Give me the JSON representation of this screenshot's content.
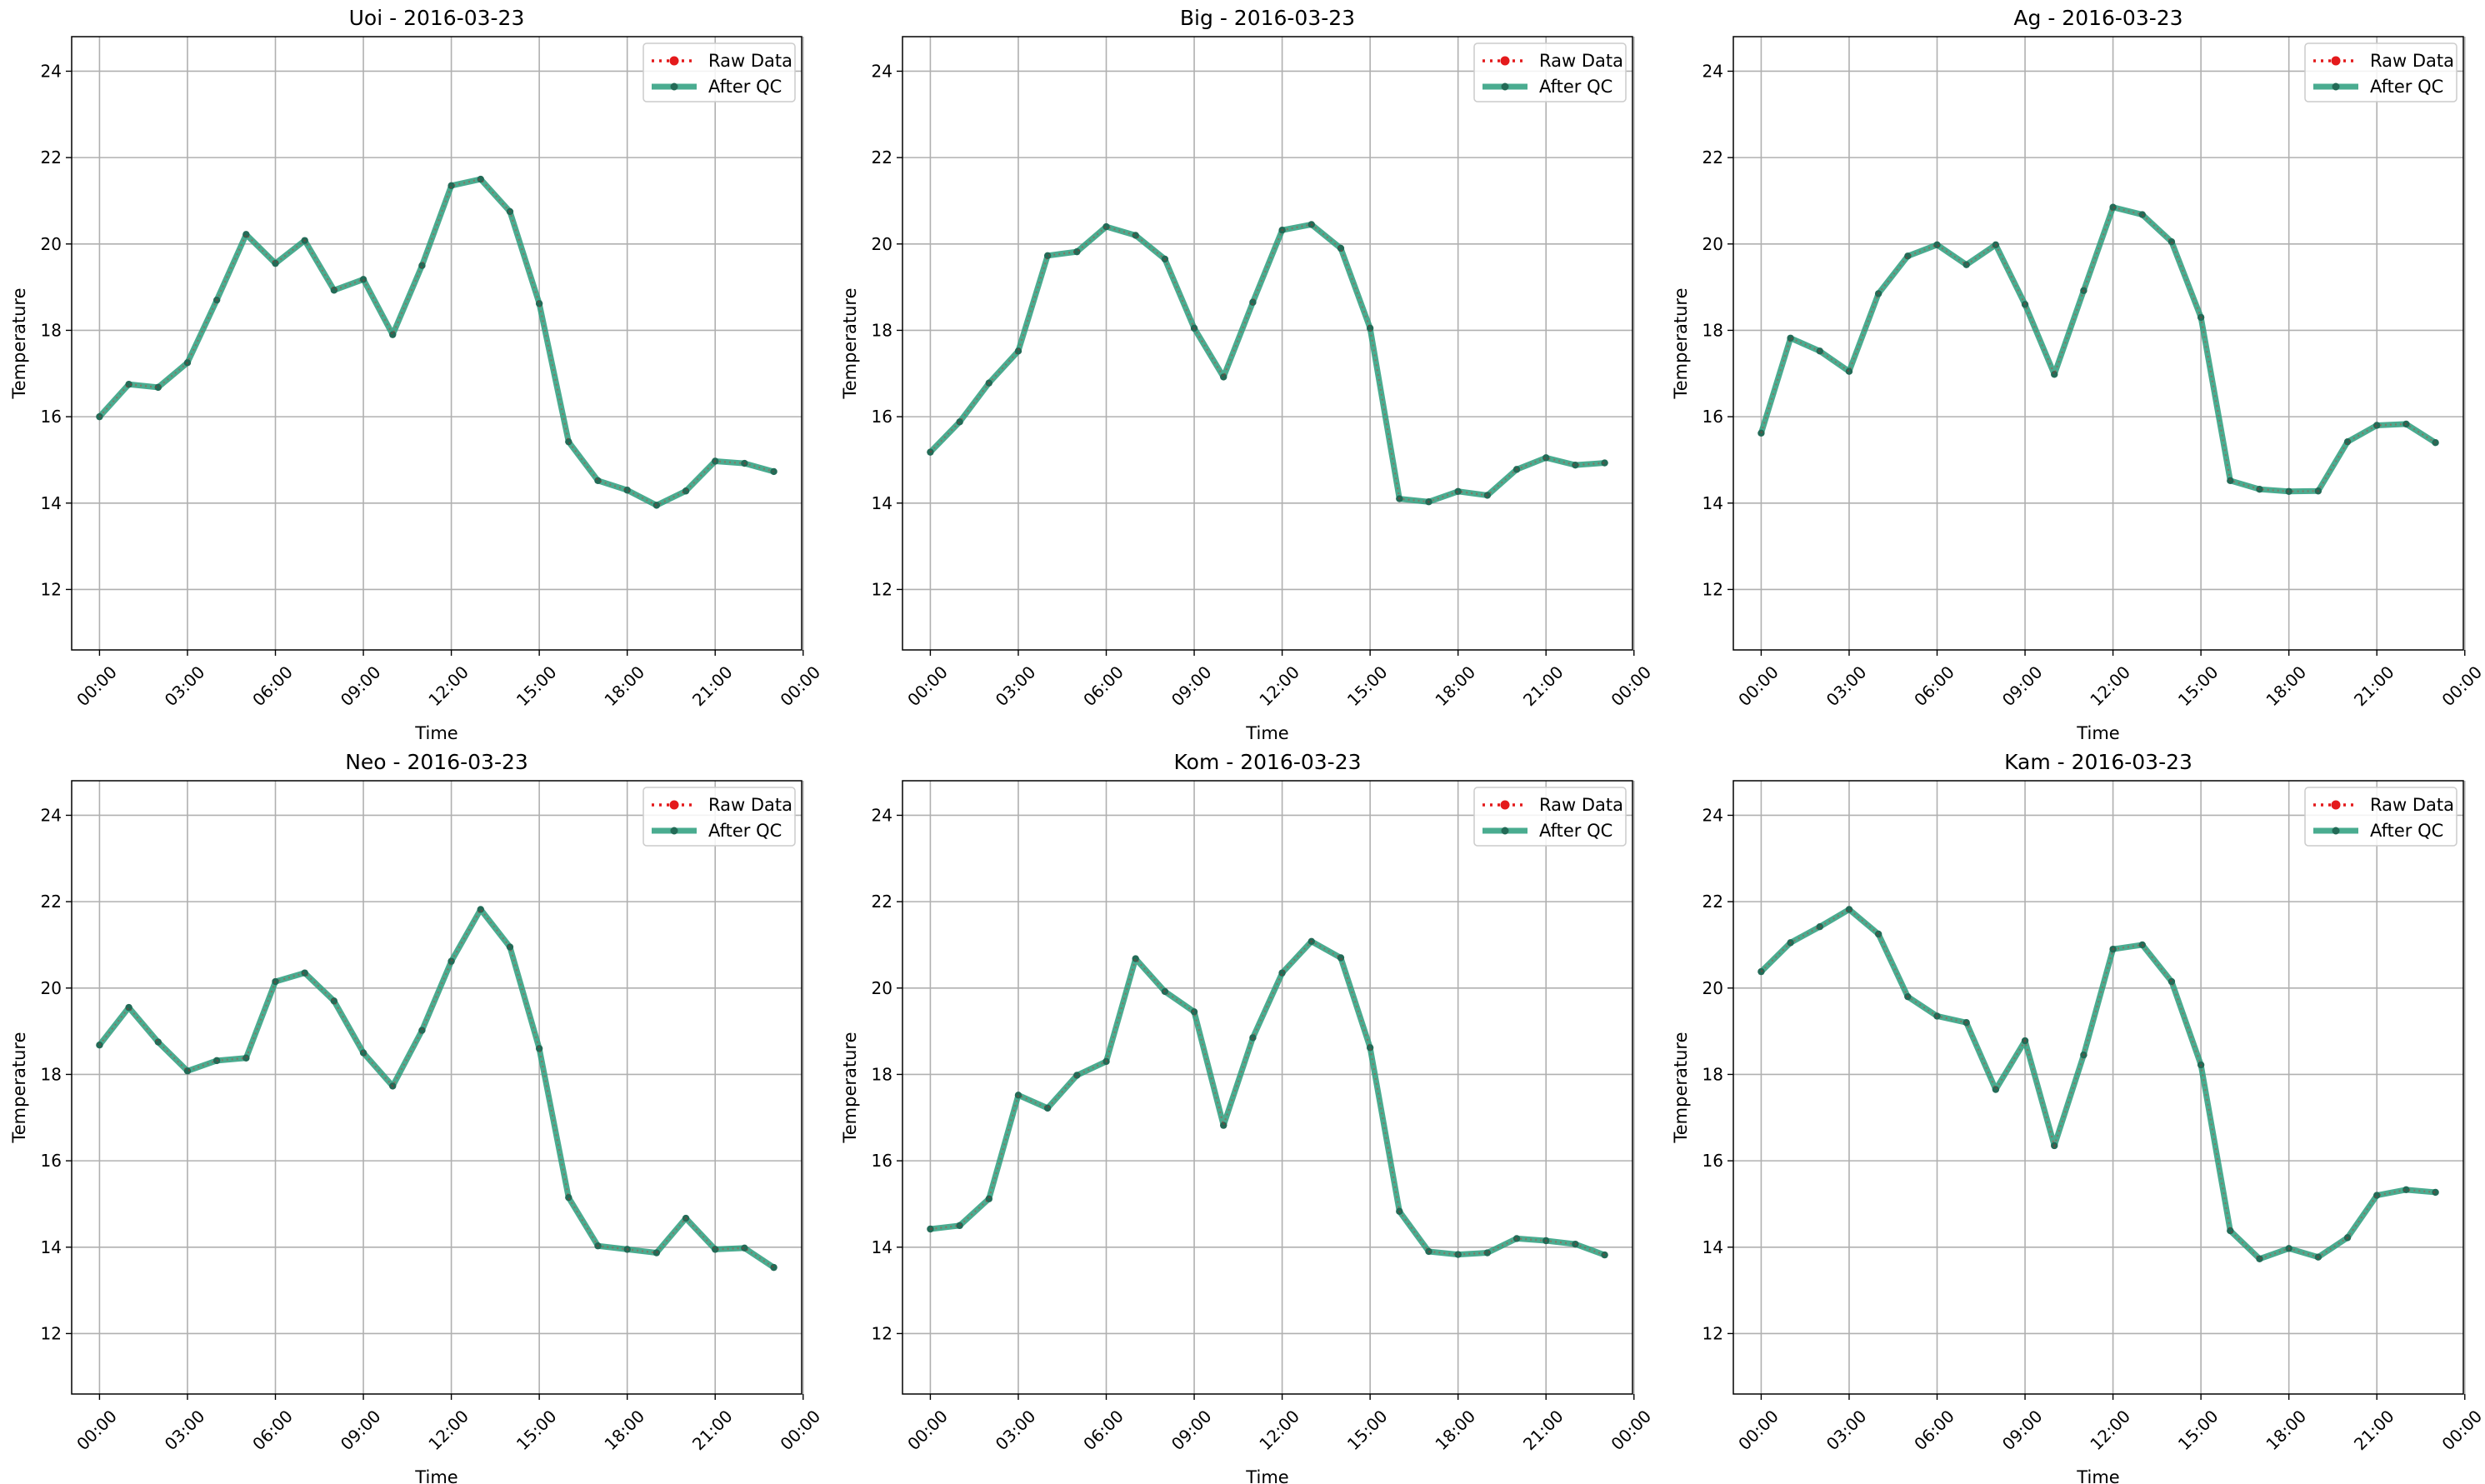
{
  "colors": {
    "raw": "#e41a1c",
    "qc": "#2a9d7c",
    "qc_marker": "#236b57",
    "grid": "#b0b0b0",
    "legend_border": "#cccccc"
  },
  "legend": {
    "placement": "top-right",
    "raw_label": "Raw Data",
    "qc_label": "After QC"
  },
  "chart_data": [
    {
      "type": "line",
      "title": "Uoi - 2016-03-23",
      "xlabel": "Time",
      "ylabel": "Temperature",
      "xlim": [
        -0.95,
        23.95
      ],
      "ylim": [
        10.6,
        24.8
      ],
      "x_ticks": [
        "00:00",
        "03:00",
        "06:00",
        "09:00",
        "12:00",
        "15:00",
        "18:00",
        "21:00",
        "00:00"
      ],
      "y_ticks": [
        "12",
        "14",
        "16",
        "18",
        "20",
        "22",
        "24"
      ],
      "grid": true,
      "x": [
        0,
        1,
        2,
        3,
        4,
        5,
        6,
        7,
        8,
        9,
        10,
        11,
        12,
        13,
        14,
        15,
        16,
        17,
        18,
        19,
        20,
        21,
        22,
        23
      ],
      "series": [
        {
          "name": "Raw Data",
          "values": [
            16.0,
            16.75,
            16.68,
            17.25,
            18.7,
            20.22,
            19.55,
            20.08,
            18.93,
            19.18,
            17.9,
            19.5,
            21.35,
            21.5,
            20.75,
            18.62,
            15.42,
            14.52,
            14.3,
            13.95,
            14.28,
            14.97,
            14.92,
            14.73
          ]
        },
        {
          "name": "After QC",
          "values": [
            16.0,
            16.75,
            16.68,
            17.25,
            18.7,
            20.22,
            19.55,
            20.08,
            18.93,
            19.18,
            17.9,
            19.5,
            21.35,
            21.5,
            20.75,
            18.62,
            15.42,
            14.52,
            14.3,
            13.95,
            14.28,
            14.97,
            14.92,
            14.73
          ]
        }
      ]
    },
    {
      "type": "line",
      "title": "Big - 2016-03-23",
      "xlabel": "Time",
      "ylabel": "Temperature",
      "xlim": [
        -0.95,
        23.95
      ],
      "ylim": [
        10.6,
        24.8
      ],
      "x_ticks": [
        "00:00",
        "03:00",
        "06:00",
        "09:00",
        "12:00",
        "15:00",
        "18:00",
        "21:00",
        "00:00"
      ],
      "y_ticks": [
        "12",
        "14",
        "16",
        "18",
        "20",
        "22",
        "24"
      ],
      "grid": true,
      "x": [
        0,
        1,
        2,
        3,
        4,
        5,
        6,
        7,
        8,
        9,
        10,
        11,
        12,
        13,
        14,
        15,
        16,
        17,
        18,
        19,
        20,
        21,
        22,
        23
      ],
      "series": [
        {
          "name": "Raw Data",
          "values": [
            15.18,
            15.88,
            16.78,
            17.52,
            19.73,
            19.82,
            20.4,
            20.2,
            19.65,
            18.05,
            16.92,
            18.65,
            20.32,
            20.45,
            19.9,
            18.05,
            14.1,
            14.03,
            14.27,
            14.18,
            14.78,
            15.05,
            14.88,
            14.93
          ]
        },
        {
          "name": "After QC",
          "values": [
            15.18,
            15.88,
            16.78,
            17.52,
            19.73,
            19.82,
            20.4,
            20.2,
            19.65,
            18.05,
            16.92,
            18.65,
            20.32,
            20.45,
            19.9,
            18.05,
            14.1,
            14.03,
            14.27,
            14.18,
            14.78,
            15.05,
            14.88,
            14.93
          ]
        }
      ]
    },
    {
      "type": "line",
      "title": "Ag - 2016-03-23",
      "xlabel": "Time",
      "ylabel": "Temperature",
      "xlim": [
        -0.95,
        23.95
      ],
      "ylim": [
        10.6,
        24.8
      ],
      "x_ticks": [
        "00:00",
        "03:00",
        "06:00",
        "09:00",
        "12:00",
        "15:00",
        "18:00",
        "21:00",
        "00:00"
      ],
      "y_ticks": [
        "12",
        "14",
        "16",
        "18",
        "20",
        "22",
        "24"
      ],
      "grid": true,
      "x": [
        0,
        1,
        2,
        3,
        4,
        5,
        6,
        7,
        8,
        9,
        10,
        11,
        12,
        13,
        14,
        15,
        16,
        17,
        18,
        19,
        20,
        21,
        22,
        23
      ],
      "series": [
        {
          "name": "Raw Data",
          "values": [
            15.62,
            17.82,
            17.52,
            17.05,
            18.85,
            19.72,
            19.98,
            19.52,
            19.98,
            18.6,
            16.98,
            18.92,
            20.85,
            20.68,
            20.05,
            18.3,
            14.52,
            14.32,
            14.27,
            14.28,
            15.42,
            15.8,
            15.83,
            15.4
          ]
        },
        {
          "name": "After QC",
          "values": [
            15.62,
            17.82,
            17.52,
            17.05,
            18.85,
            19.72,
            19.98,
            19.52,
            19.98,
            18.6,
            16.98,
            18.92,
            20.85,
            20.68,
            20.05,
            18.3,
            14.52,
            14.32,
            14.27,
            14.28,
            15.42,
            15.8,
            15.83,
            15.4
          ]
        }
      ]
    },
    {
      "type": "line",
      "title": "Neo - 2016-03-23",
      "xlabel": "Time",
      "ylabel": "Temperature",
      "xlim": [
        -0.95,
        23.95
      ],
      "ylim": [
        10.6,
        24.8
      ],
      "x_ticks": [
        "00:00",
        "03:00",
        "06:00",
        "09:00",
        "12:00",
        "15:00",
        "18:00",
        "21:00",
        "00:00"
      ],
      "y_ticks": [
        "12",
        "14",
        "16",
        "18",
        "20",
        "22",
        "24"
      ],
      "grid": true,
      "x": [
        0,
        1,
        2,
        3,
        4,
        5,
        6,
        7,
        8,
        9,
        10,
        11,
        12,
        13,
        14,
        15,
        16,
        17,
        18,
        19,
        20,
        21,
        22,
        23
      ],
      "series": [
        {
          "name": "Raw Data",
          "values": [
            18.68,
            19.55,
            18.75,
            18.08,
            18.32,
            18.38,
            20.15,
            20.35,
            19.7,
            18.5,
            17.73,
            19.02,
            20.62,
            21.82,
            20.95,
            18.6,
            15.15,
            14.03,
            13.95,
            13.87,
            14.67,
            13.95,
            13.98,
            13.53
          ]
        },
        {
          "name": "After QC",
          "values": [
            18.68,
            19.55,
            18.75,
            18.08,
            18.32,
            18.38,
            20.15,
            20.35,
            19.7,
            18.5,
            17.73,
            19.02,
            20.62,
            21.82,
            20.95,
            18.6,
            15.15,
            14.03,
            13.95,
            13.87,
            14.67,
            13.95,
            13.98,
            13.53
          ]
        }
      ]
    },
    {
      "type": "line",
      "title": "Kom - 2016-03-23",
      "xlabel": "Time",
      "ylabel": "Temperature",
      "xlim": [
        -0.95,
        23.95
      ],
      "ylim": [
        10.6,
        24.8
      ],
      "x_ticks": [
        "00:00",
        "03:00",
        "06:00",
        "09:00",
        "12:00",
        "15:00",
        "18:00",
        "21:00",
        "00:00"
      ],
      "y_ticks": [
        "12",
        "14",
        "16",
        "18",
        "20",
        "22",
        "24"
      ],
      "grid": true,
      "x": [
        0,
        1,
        2,
        3,
        4,
        5,
        6,
        7,
        8,
        9,
        10,
        11,
        12,
        13,
        14,
        15,
        16,
        17,
        18,
        19,
        20,
        21,
        22,
        23
      ],
      "series": [
        {
          "name": "Raw Data",
          "values": [
            14.42,
            14.5,
            15.12,
            17.52,
            17.22,
            17.98,
            18.3,
            20.68,
            19.92,
            19.45,
            16.82,
            18.85,
            20.35,
            21.08,
            20.7,
            18.62,
            14.83,
            13.9,
            13.83,
            13.87,
            14.2,
            14.15,
            14.07,
            13.82
          ]
        },
        {
          "name": "After QC",
          "values": [
            14.42,
            14.5,
            15.12,
            17.52,
            17.22,
            17.98,
            18.3,
            20.68,
            19.92,
            19.45,
            16.82,
            18.85,
            20.35,
            21.08,
            20.7,
            18.62,
            14.83,
            13.9,
            13.83,
            13.87,
            14.2,
            14.15,
            14.07,
            13.82
          ]
        }
      ]
    },
    {
      "type": "line",
      "title": "Kam - 2016-03-23",
      "xlabel": "Time",
      "ylabel": "Temperature",
      "xlim": [
        -0.95,
        23.95
      ],
      "ylim": [
        10.6,
        24.8
      ],
      "x_ticks": [
        "00:00",
        "03:00",
        "06:00",
        "09:00",
        "12:00",
        "15:00",
        "18:00",
        "21:00",
        "00:00"
      ],
      "y_ticks": [
        "12",
        "14",
        "16",
        "18",
        "20",
        "22",
        "24"
      ],
      "grid": true,
      "x": [
        0,
        1,
        2,
        3,
        4,
        5,
        6,
        7,
        8,
        9,
        10,
        11,
        12,
        13,
        14,
        15,
        16,
        17,
        18,
        19,
        20,
        21,
        22,
        23
      ],
      "series": [
        {
          "name": "Raw Data",
          "values": [
            20.38,
            21.05,
            21.42,
            21.82,
            21.25,
            19.8,
            19.35,
            19.2,
            17.65,
            18.78,
            16.35,
            18.45,
            20.9,
            21.0,
            20.15,
            18.22,
            14.38,
            13.73,
            13.97,
            13.77,
            14.22,
            15.2,
            15.33,
            15.27
          ]
        },
        {
          "name": "After QC",
          "values": [
            20.38,
            21.05,
            21.42,
            21.82,
            21.25,
            19.8,
            19.35,
            19.2,
            17.65,
            18.78,
            16.35,
            18.45,
            20.9,
            21.0,
            20.15,
            18.22,
            14.38,
            13.73,
            13.97,
            13.77,
            14.22,
            15.2,
            15.33,
            15.27
          ]
        }
      ]
    }
  ]
}
